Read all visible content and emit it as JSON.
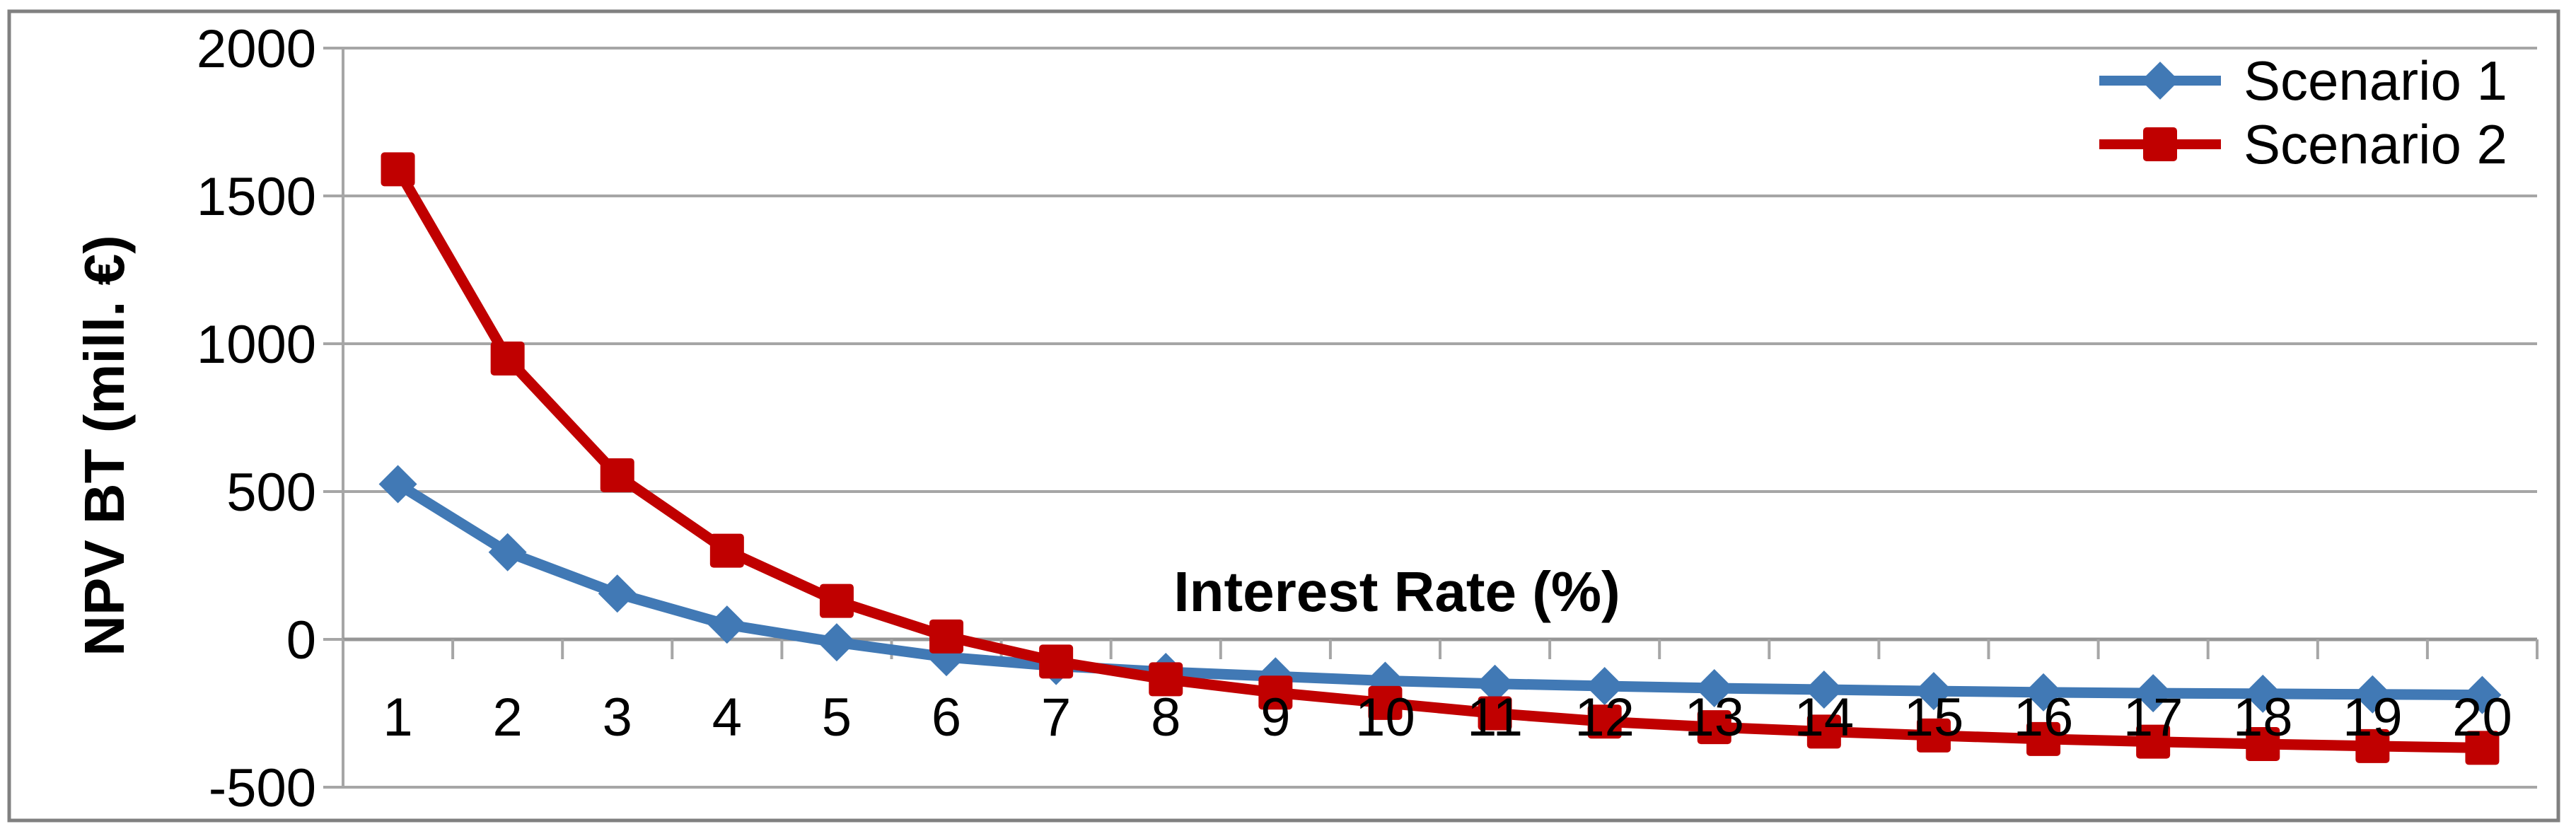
{
  "chart_data": {
    "type": "line",
    "title": "",
    "xlabel": "Interest Rate (%)",
    "ylabel": "NPV BT (mill. €)",
    "x": [
      1,
      2,
      3,
      4,
      5,
      6,
      7,
      8,
      9,
      10,
      11,
      12,
      13,
      14,
      15,
      16,
      17,
      18,
      19,
      20
    ],
    "series": [
      {
        "name": "Scenario 1",
        "marker": "diamond",
        "color": "#4179B5",
        "values": [
          525,
          295,
          155,
          50,
          -10,
          -60,
          -90,
          -110,
          -125,
          -140,
          -150,
          -158,
          -165,
          -170,
          -175,
          -179,
          -182,
          -184,
          -186,
          -188
        ]
      },
      {
        "name": "Scenario 2",
        "marker": "square",
        "color": "#C00000",
        "values": [
          1590,
          950,
          555,
          300,
          130,
          10,
          -75,
          -135,
          -180,
          -215,
          -250,
          -278,
          -297,
          -312,
          -325,
          -337,
          -346,
          -354,
          -361,
          -367
        ]
      }
    ],
    "ylim": [
      -500,
      2000
    ],
    "yticks": [
      2000,
      1500,
      1000,
      500,
      0,
      -500
    ],
    "ytick_special_color": {
      "value": -500,
      "color": "#FF0000"
    },
    "grid": true,
    "gridline_color": "#A6A6A6",
    "zero_axis_color": "#969696",
    "border_color": "#808080",
    "legend_position": "top-right"
  }
}
